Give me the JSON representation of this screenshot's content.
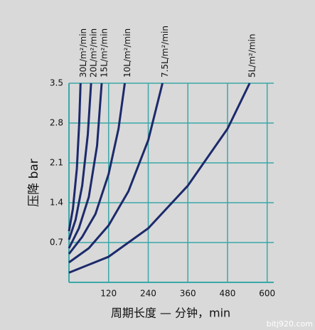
{
  "chart_data": {
    "type": "line",
    "xlabel": "周期长度 — 分钟，min",
    "ylabel": "压降 bar",
    "watermark": "bitj920.com",
    "xlim": [
      0,
      620
    ],
    "ylim": [
      0,
      3.5
    ],
    "xticks": [
      120,
      240,
      360,
      480,
      600
    ],
    "yticks": [
      0.7,
      1.4,
      2.1,
      2.8,
      3.5
    ],
    "grid": true,
    "grid_color": "#3ba7a8",
    "series": [
      {
        "name": "30L/m²/min",
        "color": "#1c2a6b",
        "x": [
          0,
          12,
          24,
          31,
          35
        ],
        "values": [
          0.9,
          1.3,
          2.0,
          2.8,
          3.5
        ]
      },
      {
        "name": "20L/m²/min",
        "color": "#1c2a6b",
        "x": [
          0,
          20,
          40,
          57,
          67
        ],
        "values": [
          0.75,
          1.1,
          1.7,
          2.6,
          3.5
        ]
      },
      {
        "name": "15L/m²/min",
        "color": "#1c2a6b",
        "x": [
          0,
          30,
          60,
          85,
          99
        ],
        "values": [
          0.6,
          0.95,
          1.5,
          2.4,
          3.5
        ]
      },
      {
        "name": "10L/m²/min",
        "color": "#1c2a6b",
        "x": [
          0,
          40,
          80,
          120,
          150,
          169
        ],
        "values": [
          0.5,
          0.8,
          1.2,
          1.9,
          2.7,
          3.5
        ]
      },
      {
        "name": "7.5L/m²/min",
        "color": "#1c2a6b",
        "x": [
          0,
          60,
          120,
          180,
          240,
          283
        ],
        "values": [
          0.35,
          0.6,
          1.0,
          1.6,
          2.5,
          3.5
        ]
      },
      {
        "name": "5L/m²/min",
        "color": "#1c2a6b",
        "x": [
          0,
          120,
          240,
          360,
          480,
          547
        ],
        "values": [
          0.17,
          0.45,
          0.95,
          1.7,
          2.7,
          3.5
        ]
      }
    ]
  }
}
